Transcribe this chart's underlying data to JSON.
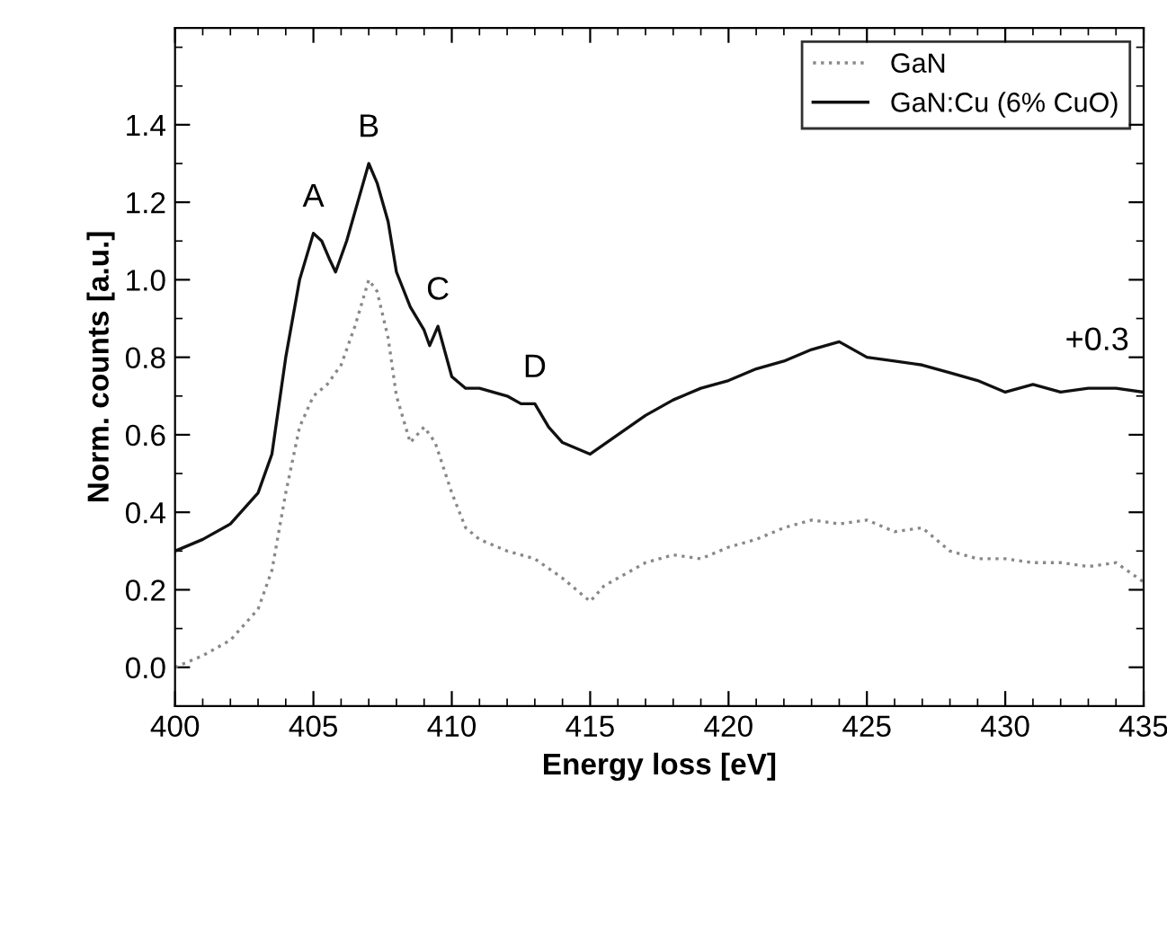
{
  "chart_data": {
    "type": "line",
    "xlabel": "Energy loss [eV]",
    "ylabel": "Norm. counts [a.u.]",
    "xlim": [
      400,
      435
    ],
    "xticks": [
      400,
      405,
      410,
      415,
      420,
      425,
      430,
      435
    ],
    "ylim": [
      -0.1,
      1.65
    ],
    "yticks": [
      {
        "value": 0,
        "label": "0.0"
      },
      0.2,
      0.4,
      0.6,
      0.8,
      {
        "value": 1,
        "label": "1.0"
      },
      1.2,
      1.4
    ],
    "legend": "top right",
    "grid": false,
    "series": [
      {
        "name": "GaN",
        "color": "#888888",
        "line_style": "dotted",
        "x": [
          400,
          401,
          402,
          403,
          403.5,
          404,
          404.5,
          405,
          405.5,
          406,
          406.5,
          407,
          407.3,
          407.7,
          408,
          408.5,
          409,
          409.4,
          410,
          410.5,
          411,
          412,
          413,
          414,
          415,
          415.5,
          416,
          417,
          418,
          419,
          420,
          421,
          422,
          423,
          424,
          425,
          426,
          427,
          428,
          429,
          430,
          431,
          432,
          433,
          434,
          435
        ],
        "values": [
          0.0,
          0.03,
          0.07,
          0.15,
          0.25,
          0.45,
          0.62,
          0.7,
          0.73,
          0.78,
          0.88,
          1.0,
          0.97,
          0.85,
          0.7,
          0.58,
          0.62,
          0.58,
          0.45,
          0.36,
          0.33,
          0.3,
          0.28,
          0.23,
          0.17,
          0.21,
          0.23,
          0.27,
          0.29,
          0.28,
          0.31,
          0.33,
          0.36,
          0.38,
          0.37,
          0.38,
          0.35,
          0.36,
          0.3,
          0.28,
          0.28,
          0.27,
          0.27,
          0.26,
          0.27,
          0.22
        ]
      },
      {
        "name": "GaN:Cu (6% CuO)",
        "color": "#111111",
        "line_style": "solid",
        "x": [
          400,
          401,
          402,
          403,
          403.5,
          404,
          404.5,
          405,
          405.3,
          405.6,
          405.8,
          406.2,
          406.6,
          407,
          407.3,
          407.7,
          408,
          408.5,
          409,
          409.2,
          409.5,
          410,
          410.5,
          411,
          412,
          412.5,
          413,
          413.5,
          414,
          415,
          416,
          417,
          418,
          419,
          420,
          421,
          422,
          423,
          424,
          425,
          426,
          427,
          428,
          429,
          430,
          431,
          432,
          433,
          434,
          435
        ],
        "values": [
          0.3,
          0.33,
          0.37,
          0.45,
          0.55,
          0.8,
          1.0,
          1.12,
          1.1,
          1.05,
          1.02,
          1.1,
          1.2,
          1.3,
          1.25,
          1.15,
          1.02,
          0.93,
          0.87,
          0.83,
          0.88,
          0.75,
          0.72,
          0.72,
          0.7,
          0.68,
          0.68,
          0.62,
          0.58,
          0.55,
          0.6,
          0.65,
          0.69,
          0.72,
          0.74,
          0.77,
          0.79,
          0.82,
          0.84,
          0.8,
          0.79,
          0.78,
          0.76,
          0.74,
          0.71,
          0.73,
          0.71,
          0.72,
          0.72,
          0.71
        ]
      }
    ],
    "annotations": [
      {
        "text": "A",
        "x": 405,
        "y": 1.12
      },
      {
        "text": "B",
        "x": 407,
        "y": 1.3
      },
      {
        "text": "C",
        "x": 409.5,
        "y": 0.88
      },
      {
        "text": "D",
        "x": 413,
        "y": 0.68
      },
      "+0.3"
    ]
  }
}
